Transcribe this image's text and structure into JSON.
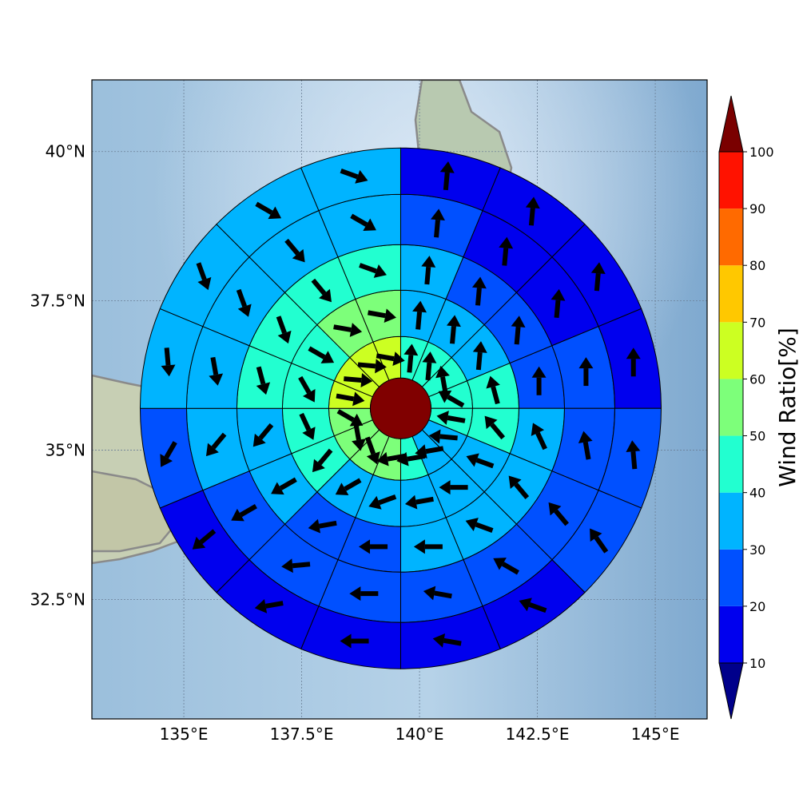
{
  "map": {
    "lat_ticks": [
      {
        "value": 40,
        "label": "40°N"
      },
      {
        "value": 37.5,
        "label": "37.5°N"
      },
      {
        "value": 35,
        "label": "35°N"
      },
      {
        "value": 32.5,
        "label": "32.5°N"
      }
    ],
    "lon_ticks": [
      {
        "value": 135,
        "label": "135°E"
      },
      {
        "value": 137.5,
        "label": "137.5°E"
      },
      {
        "value": 140,
        "label": "140°E"
      },
      {
        "value": 142.5,
        "label": "142.5°E"
      },
      {
        "value": 145,
        "label": "145°E"
      }
    ],
    "extent": {
      "lon": [
        133.05,
        146.1
      ],
      "lat": [
        30.5,
        41.2
      ]
    },
    "center": {
      "lon": 139.6,
      "lat": 35.7
    },
    "center_color": "#800000"
  },
  "colorbar": {
    "label": "Wind Ratio[%]",
    "ticks": [
      "10",
      "20",
      "30",
      "40",
      "50",
      "60",
      "70",
      "80",
      "90",
      "100"
    ],
    "bins": [
      {
        "range": [
          10,
          20
        ],
        "color": "#0000ee"
      },
      {
        "range": [
          20,
          30
        ],
        "color": "#0050ff"
      },
      {
        "range": [
          30,
          40
        ],
        "color": "#00b4ff"
      },
      {
        "range": [
          40,
          50
        ],
        "color": "#22ffd0"
      },
      {
        "range": [
          50,
          60
        ],
        "color": "#7dff7a"
      },
      {
        "range": [
          60,
          70
        ],
        "color": "#ccff22"
      },
      {
        "range": [
          70,
          80
        ],
        "color": "#ffc800"
      },
      {
        "range": [
          80,
          90
        ],
        "color": "#ff6a00"
      },
      {
        "range": [
          90,
          100
        ],
        "color": "#ff1200"
      }
    ],
    "under_color": "#00008b",
    "over_color": "#7a0000"
  },
  "chart_data": {
    "type": "heatmap",
    "description_units": "sector wind ratio bin (%) and wind direction (degrees, math convention)",
    "rings": 5,
    "sectors_per_ring": 16,
    "sector_start": "north, clockwise",
    "ratio_bins": [
      [
        40,
        40,
        40,
        40,
        40,
        30,
        30,
        40,
        50,
        50,
        50,
        50,
        60,
        60,
        60,
        60
      ],
      [
        30,
        30,
        30,
        40,
        40,
        30,
        30,
        30,
        30,
        30,
        40,
        40,
        40,
        40,
        50,
        50
      ],
      [
        30,
        20,
        20,
        20,
        30,
        30,
        30,
        30,
        20,
        20,
        30,
        30,
        40,
        40,
        40,
        40
      ],
      [
        20,
        10,
        10,
        20,
        20,
        20,
        20,
        20,
        20,
        20,
        20,
        30,
        30,
        30,
        30,
        30
      ],
      [
        10,
        10,
        10,
        10,
        20,
        20,
        10,
        10,
        10,
        10,
        10,
        20,
        30,
        30,
        30,
        30
      ]
    ],
    "wind_directions": [
      [
        5,
        5,
        -10,
        -60,
        -80,
        -85,
        -100,
        -100,
        -100,
        160,
        170,
        120,
        100,
        95,
        95,
        100
      ],
      [
        5,
        5,
        5,
        -15,
        -40,
        -70,
        -90,
        -100,
        -110,
        -120,
        -140,
        155,
        150,
        120,
        100,
        100
      ],
      [
        5,
        5,
        5,
        0,
        -25,
        -40,
        -70,
        -90,
        -90,
        -100,
        -120,
        -140,
        165,
        160,
        140,
        110
      ],
      [
        5,
        5,
        5,
        0,
        -10,
        -40,
        -60,
        -80,
        -90,
        -95,
        -120,
        -140,
        170,
        160,
        140,
        120
      ],
      [
        5,
        5,
        5,
        0,
        -5,
        -35,
        -70,
        -80,
        -90,
        -100,
        -130,
        -150,
        175,
        160,
        120,
        110
      ]
    ]
  }
}
